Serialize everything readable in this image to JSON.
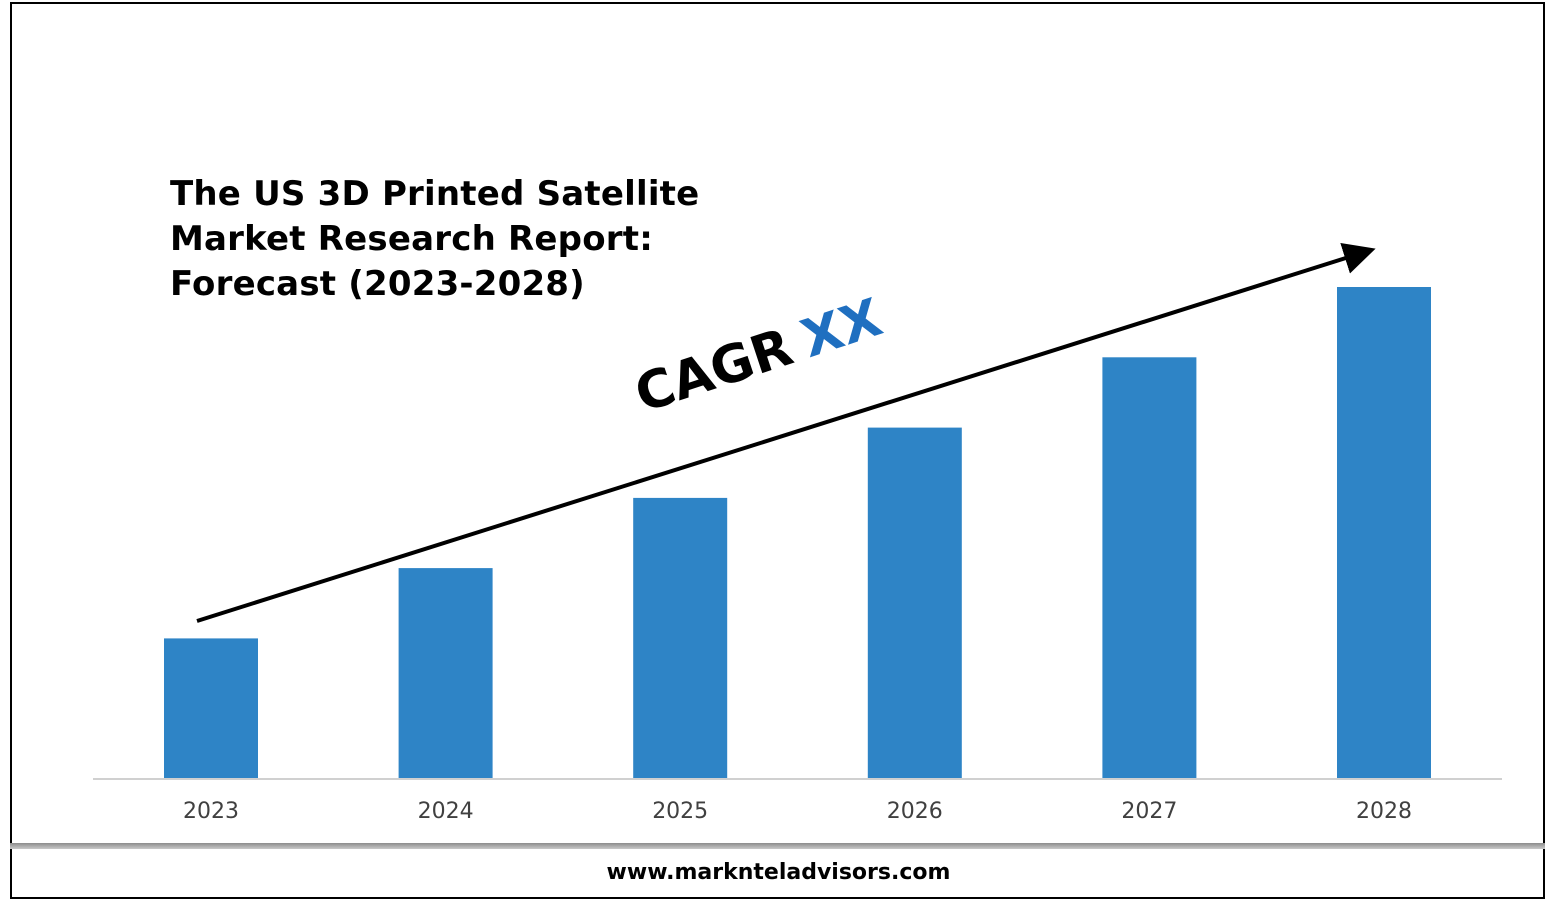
{
  "chart_data": {
    "type": "bar",
    "title_lines": [
      "The US 3D Printed Satellite",
      "Market Research Report:",
      "Forecast (2023-2028)"
    ],
    "categories": [
      "2023",
      "2024",
      "2025",
      "2026",
      "2027",
      "2028"
    ],
    "values": [
      2,
      3,
      4,
      5,
      6,
      7
    ],
    "ylim": [
      0,
      7
    ],
    "bar_color": "#2e84c6",
    "annotation": {
      "label": "CAGR",
      "value": "XX",
      "value_color": "#1f6fc0"
    },
    "grid": false,
    "legend": "none"
  },
  "footer": {
    "url": "www.marknteladvisors.com"
  }
}
